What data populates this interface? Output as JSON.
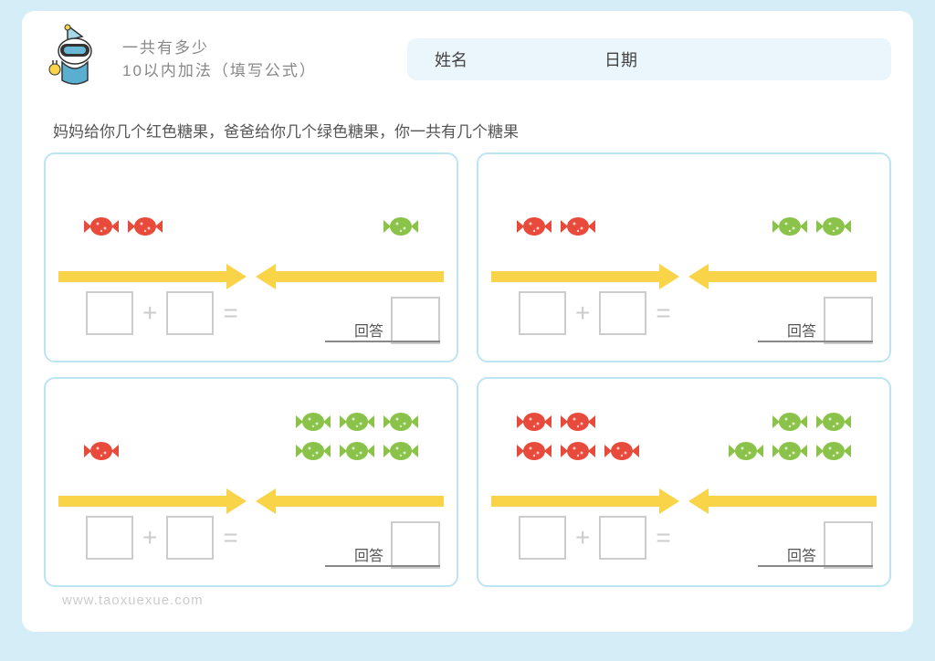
{
  "header": {
    "title_line1": "一共有多少",
    "title_line2": "10以内加法（填写公式）",
    "name_label": "姓名",
    "date_label": "日期"
  },
  "instruction": "妈妈给你几个红色糖果，爸爸给你几个绿色糖果，你一共有几个糖果",
  "colors": {
    "page_bg": "#d4edf7",
    "panel_border": "#bce4f2",
    "arrow": "#fad448",
    "candy_red": "#e84b3c",
    "candy_green": "#8bc34a",
    "box_border": "#cccccc",
    "op_color": "#cccccc",
    "text": "#555555"
  },
  "labels": {
    "plus": "+",
    "equals": "=",
    "answer": "回答"
  },
  "panels": [
    {
      "red_rows": [
        [
          2
        ]
      ],
      "green_rows": [
        [
          1
        ]
      ]
    },
    {
      "red_rows": [
        [
          2
        ]
      ],
      "green_rows": [
        [
          2
        ]
      ]
    },
    {
      "red_rows": [
        [
          1
        ]
      ],
      "green_rows": [
        [
          3
        ],
        [
          3
        ]
      ]
    },
    {
      "red_rows": [
        [
          2
        ],
        [
          3
        ]
      ],
      "green_rows": [
        [
          2
        ],
        [
          3
        ]
      ]
    }
  ],
  "candy_style": {
    "width": 42,
    "height": 26,
    "gap": 6
  },
  "watermark": "www.taoxuexue.com"
}
